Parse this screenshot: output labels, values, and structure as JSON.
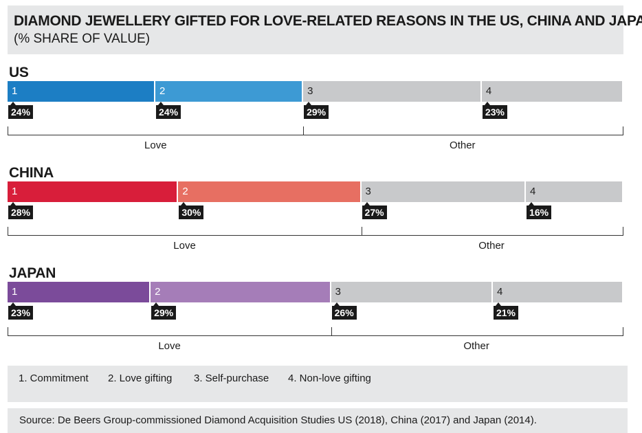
{
  "header": {
    "title": "DIAMOND JEWELLERY GIFTED FOR LOVE-RELATED REASONS IN THE US, CHINA AND JAPAN",
    "subtitle": "(% SHARE OF VALUE)"
  },
  "chart_data": {
    "type": "bar",
    "stacked": true,
    "orientation": "horizontal",
    "categories": [
      "1",
      "2",
      "3",
      "4"
    ],
    "category_names": [
      "1. Commitment",
      "2. Love gifting",
      "3. Self-purchase",
      "4. Non-love gifting"
    ],
    "groups": [
      {
        "name": "Love",
        "categories": [
          "1",
          "2"
        ]
      },
      {
        "name": "Other",
        "categories": [
          "3",
          "4"
        ]
      }
    ],
    "series": [
      {
        "name": "US",
        "values": [
          24,
          24,
          29,
          23
        ],
        "labels": [
          "24%",
          "24%",
          "29%",
          "23%"
        ],
        "colors": [
          "#1c7ec4",
          "#3d9ad4",
          "#c8c9cb",
          "#c8c9cb"
        ]
      },
      {
        "name": "CHINA",
        "values": [
          28,
          30,
          27,
          16
        ],
        "labels": [
          "28%",
          "30%",
          "27%",
          "16%"
        ],
        "colors": [
          "#d81e3a",
          "#e76f62",
          "#c8c9cb",
          "#c8c9cb"
        ]
      },
      {
        "name": "JAPAN",
        "values": [
          23,
          29,
          26,
          21
        ],
        "labels": [
          "23%",
          "29%",
          "26%",
          "21%"
        ],
        "colors": [
          "#7b4b9a",
          "#a57db8",
          "#c8c9cb",
          "#c8c9cb"
        ]
      }
    ]
  },
  "legend": {
    "items": [
      "1. Commitment",
      "2. Love gifting",
      "3. Self-purchase",
      "4. Non-love gifting"
    ]
  },
  "source": "Source: De Beers Group-commissioned Diamond Acquisition Studies US (2018), China (2017) and Japan (2014)."
}
